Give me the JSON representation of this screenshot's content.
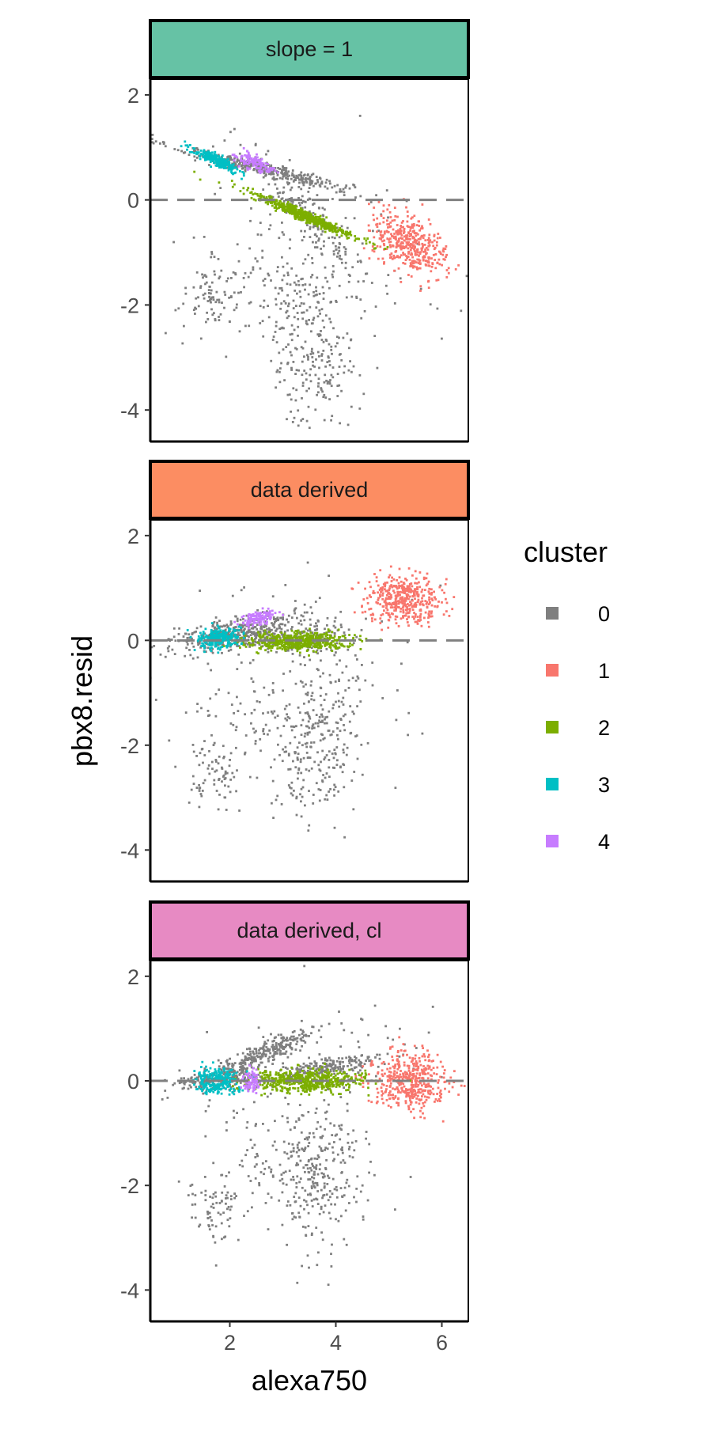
{
  "chart_data": {
    "type": "scatter",
    "xlabel": "alexa750",
    "ylabel": "pbx8.resid",
    "xlim": [
      0.5,
      6.5
    ],
    "ylim": [
      -4.6,
      2.3
    ],
    "x_ticks": [
      "2",
      "4",
      "6"
    ],
    "y_ticks": [
      "2",
      "0",
      "-2",
      "-4"
    ],
    "reference_line_y": 0,
    "grid": false,
    "legend": {
      "title": "cluster",
      "position": "right",
      "entries": [
        {
          "label": "0",
          "color": "#7f7f7f"
        },
        {
          "label": "1",
          "color": "#f8766d"
        },
        {
          "label": "2",
          "color": "#7cae00"
        },
        {
          "label": "3",
          "color": "#00bfc4"
        },
        {
          "label": "4",
          "color": "#c77cff"
        }
      ]
    },
    "panels": [
      {
        "strip_label": "slope = 1",
        "strip_color": "#66c2a5",
        "clusters": [
          {
            "cluster": "0",
            "groups": [
              {
                "cx": 2.6,
                "cy": 0.6,
                "sx": 0.85,
                "sy": 0.22,
                "rho": -0.95,
                "n": 380
              },
              {
                "cx": 3.5,
                "cy": -0.3,
                "sx": 0.55,
                "sy": 0.55,
                "rho": -0.9,
                "n": 160
              },
              {
                "cx": 3.6,
                "cy": -2.8,
                "sx": 0.4,
                "sy": 0.75,
                "rho": 0.0,
                "n": 240
              },
              {
                "cx": 1.7,
                "cy": -1.8,
                "sx": 0.25,
                "sy": 0.3,
                "rho": 0.0,
                "n": 70
              },
              {
                "cx": 3.0,
                "cy": -1.6,
                "sx": 1.0,
                "sy": 0.7,
                "rho": 0.0,
                "n": 150
              },
              {
                "cx": 3.5,
                "cy": -1.0,
                "sx": 1.4,
                "sy": 1.1,
                "rho": 0.0,
                "n": 40
              }
            ]
          },
          {
            "cluster": "1",
            "groups": [
              {
                "cx": 5.4,
                "cy": -0.85,
                "sx": 0.35,
                "sy": 0.3,
                "rho": -0.5,
                "n": 420
              }
            ]
          },
          {
            "cluster": "2",
            "groups": [
              {
                "cx": 3.4,
                "cy": -0.3,
                "sx": 0.5,
                "sy": 0.22,
                "rho": -0.97,
                "n": 520
              }
            ]
          },
          {
            "cluster": "3",
            "groups": [
              {
                "cx": 1.75,
                "cy": 0.75,
                "sx": 0.22,
                "sy": 0.12,
                "rho": -0.9,
                "n": 240
              }
            ]
          },
          {
            "cluster": "4",
            "groups": [
              {
                "cx": 2.5,
                "cy": 0.7,
                "sx": 0.18,
                "sy": 0.1,
                "rho": -0.6,
                "n": 120
              }
            ]
          }
        ]
      },
      {
        "strip_label": "data derived",
        "strip_color": "#fc8d62",
        "clusters": [
          {
            "cluster": "0",
            "groups": [
              {
                "cx": 2.1,
                "cy": 0.15,
                "sx": 0.6,
                "sy": 0.18,
                "rho": 0.6,
                "n": 380
              },
              {
                "cx": 3.3,
                "cy": 0.05,
                "sx": 0.55,
                "sy": 0.15,
                "rho": 0.2,
                "n": 160
              },
              {
                "cx": 3.6,
                "cy": -2.0,
                "sx": 0.4,
                "sy": 0.75,
                "rho": 0.0,
                "n": 240
              },
              {
                "cx": 1.7,
                "cy": -2.5,
                "sx": 0.25,
                "sy": 0.3,
                "rho": 0.0,
                "n": 70
              },
              {
                "cx": 3.0,
                "cy": -1.3,
                "sx": 1.0,
                "sy": 0.7,
                "rho": 0.0,
                "n": 150
              },
              {
                "cx": 3.5,
                "cy": 0.0,
                "sx": 1.4,
                "sy": 0.9,
                "rho": 0.0,
                "n": 40
              }
            ]
          },
          {
            "cluster": "1",
            "groups": [
              {
                "cx": 5.3,
                "cy": 0.8,
                "sx": 0.35,
                "sy": 0.22,
                "rho": 0.0,
                "n": 420
              }
            ]
          },
          {
            "cluster": "2",
            "groups": [
              {
                "cx": 3.3,
                "cy": -0.02,
                "sx": 0.5,
                "sy": 0.08,
                "rho": 0.1,
                "n": 520
              }
            ]
          },
          {
            "cluster": "3",
            "groups": [
              {
                "cx": 1.8,
                "cy": 0.05,
                "sx": 0.2,
                "sy": 0.1,
                "rho": 0.3,
                "n": 240
              }
            ]
          },
          {
            "cluster": "4",
            "groups": [
              {
                "cx": 2.55,
                "cy": 0.42,
                "sx": 0.16,
                "sy": 0.08,
                "rho": 0.5,
                "n": 120
              }
            ]
          }
        ]
      },
      {
        "strip_label": "data derived, cl",
        "strip_color": "#e78ac3",
        "clusters": [
          {
            "cluster": "0",
            "groups": [
              {
                "cx": 1.9,
                "cy": 0.05,
                "sx": 0.45,
                "sy": 0.12,
                "rho": 0.5,
                "n": 200
              },
              {
                "cx": 2.7,
                "cy": 0.55,
                "sx": 0.45,
                "sy": 0.2,
                "rho": 0.85,
                "n": 260
              },
              {
                "cx": 3.8,
                "cy": 0.25,
                "sx": 0.5,
                "sy": 0.13,
                "rho": 0.75,
                "n": 220
              },
              {
                "cx": 3.6,
                "cy": -1.9,
                "sx": 0.4,
                "sy": 0.75,
                "rho": 0.0,
                "n": 240
              },
              {
                "cx": 1.7,
                "cy": -2.5,
                "sx": 0.25,
                "sy": 0.3,
                "rho": 0.0,
                "n": 70
              },
              {
                "cx": 3.0,
                "cy": -1.3,
                "sx": 1.0,
                "sy": 0.7,
                "rho": 0.0,
                "n": 150
              },
              {
                "cx": 4.0,
                "cy": 0.6,
                "sx": 1.3,
                "sy": 0.5,
                "rho": 0.0,
                "n": 40
              }
            ]
          },
          {
            "cluster": "1",
            "groups": [
              {
                "cx": 5.4,
                "cy": 0.0,
                "sx": 0.35,
                "sy": 0.28,
                "rho": 0.0,
                "n": 420
              }
            ]
          },
          {
            "cluster": "2",
            "groups": [
              {
                "cx": 3.4,
                "cy": 0.0,
                "sx": 0.55,
                "sy": 0.1,
                "rho": 0.0,
                "n": 520
              }
            ]
          },
          {
            "cluster": "3",
            "groups": [
              {
                "cx": 1.75,
                "cy": 0.0,
                "sx": 0.22,
                "sy": 0.12,
                "rho": 0.0,
                "n": 240
              }
            ]
          },
          {
            "cluster": "4",
            "groups": [
              {
                "cx": 2.4,
                "cy": 0.0,
                "sx": 0.08,
                "sy": 0.1,
                "rho": 0.0,
                "n": 80
              }
            ]
          }
        ]
      }
    ]
  }
}
